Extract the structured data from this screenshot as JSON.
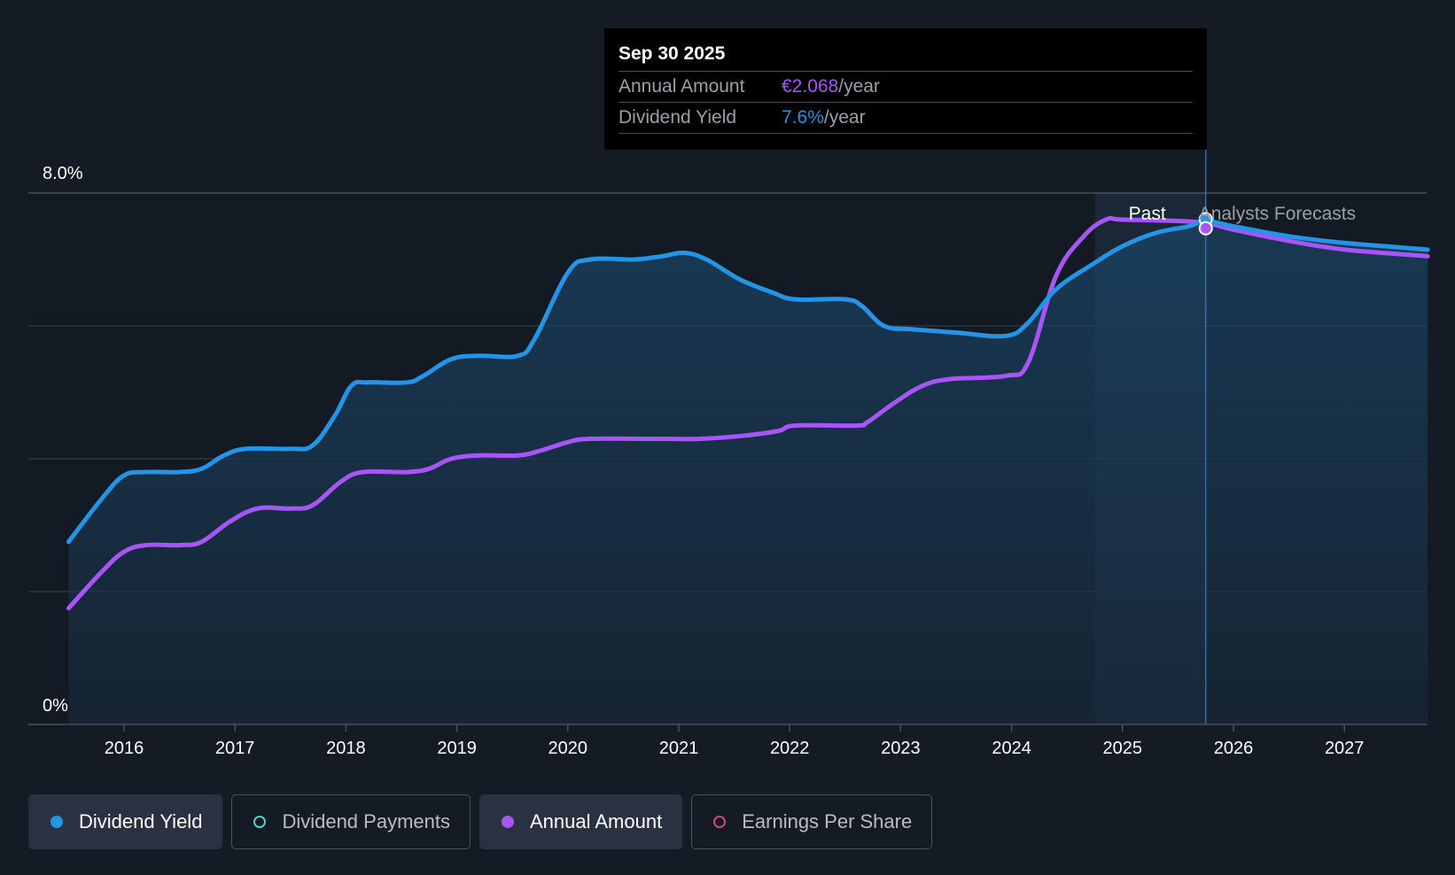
{
  "tooltip": {
    "date": "Sep 30 2025",
    "annual_label": "Annual Amount",
    "annual_value": "€2.068",
    "annual_unit": "/year",
    "yield_label": "Dividend Yield",
    "yield_value": "7.6%",
    "yield_unit": "/year"
  },
  "zones": {
    "past": "Past",
    "forecast": "Analysts Forecasts"
  },
  "legend": [
    {
      "label": "Dividend Yield",
      "color": "#2394e6",
      "active": true,
      "filled": true
    },
    {
      "label": "Dividend Payments",
      "color": "#4fd1c5",
      "active": false,
      "filled": false
    },
    {
      "label": "Annual Amount",
      "color": "#a855f7",
      "active": true,
      "filled": true
    },
    {
      "label": "Earnings Per Share",
      "color": "#d6457a",
      "active": false,
      "filled": false
    }
  ],
  "chart_data": {
    "type": "line",
    "y_tick_labels": [
      "0%",
      "8.0%"
    ],
    "ylim": [
      0,
      8
    ],
    "xlim": [
      2015.35,
      2027.75
    ],
    "x_ticks": [
      "2016",
      "2017",
      "2018",
      "2019",
      "2020",
      "2021",
      "2022",
      "2023",
      "2024",
      "2025",
      "2026",
      "2027"
    ],
    "grid": true,
    "past_shade_range": [
      2024.75,
      2025.75
    ],
    "cursor_x": 2025.75,
    "series": [
      {
        "name": "Dividend Yield",
        "color": "#2394e6",
        "points": [
          [
            2015.5,
            2.75
          ],
          [
            2015.8,
            3.4
          ],
          [
            2016.0,
            3.75
          ],
          [
            2016.2,
            3.8
          ],
          [
            2016.5,
            3.8
          ],
          [
            2016.7,
            3.85
          ],
          [
            2016.9,
            4.05
          ],
          [
            2017.1,
            4.15
          ],
          [
            2017.5,
            4.15
          ],
          [
            2017.7,
            4.2
          ],
          [
            2017.9,
            4.65
          ],
          [
            2018.05,
            5.1
          ],
          [
            2018.2,
            5.15
          ],
          [
            2018.55,
            5.15
          ],
          [
            2018.7,
            5.25
          ],
          [
            2018.95,
            5.5
          ],
          [
            2019.2,
            5.55
          ],
          [
            2019.55,
            5.55
          ],
          [
            2019.7,
            5.8
          ],
          [
            2020.0,
            6.8
          ],
          [
            2020.2,
            7.0
          ],
          [
            2020.6,
            7.0
          ],
          [
            2020.85,
            7.05
          ],
          [
            2021.05,
            7.1
          ],
          [
            2021.25,
            7.0
          ],
          [
            2021.55,
            6.7
          ],
          [
            2021.85,
            6.5
          ],
          [
            2022.05,
            6.4
          ],
          [
            2022.5,
            6.4
          ],
          [
            2022.65,
            6.3
          ],
          [
            2022.85,
            6.0
          ],
          [
            2023.1,
            5.95
          ],
          [
            2023.5,
            5.9
          ],
          [
            2023.95,
            5.85
          ],
          [
            2024.15,
            6.05
          ],
          [
            2024.4,
            6.55
          ],
          [
            2024.75,
            6.95
          ],
          [
            2025.0,
            7.2
          ],
          [
            2025.3,
            7.4
          ],
          [
            2025.6,
            7.5
          ],
          [
            2025.75,
            7.58
          ],
          [
            2026.0,
            7.5
          ],
          [
            2026.5,
            7.35
          ],
          [
            2027.0,
            7.25
          ],
          [
            2027.75,
            7.15
          ]
        ]
      },
      {
        "name": "Annual Amount",
        "color": "#a855f7",
        "points": [
          [
            2015.5,
            1.75
          ],
          [
            2015.8,
            2.3
          ],
          [
            2016.0,
            2.6
          ],
          [
            2016.2,
            2.7
          ],
          [
            2016.5,
            2.7
          ],
          [
            2016.7,
            2.75
          ],
          [
            2016.95,
            3.05
          ],
          [
            2017.2,
            3.25
          ],
          [
            2017.5,
            3.25
          ],
          [
            2017.7,
            3.3
          ],
          [
            2017.95,
            3.65
          ],
          [
            2018.15,
            3.8
          ],
          [
            2018.55,
            3.8
          ],
          [
            2018.75,
            3.85
          ],
          [
            2018.95,
            4.0
          ],
          [
            2019.2,
            4.05
          ],
          [
            2019.55,
            4.05
          ],
          [
            2019.75,
            4.12
          ],
          [
            2020.0,
            4.25
          ],
          [
            2020.2,
            4.3
          ],
          [
            2020.8,
            4.3
          ],
          [
            2021.2,
            4.3
          ],
          [
            2021.6,
            4.35
          ],
          [
            2021.9,
            4.42
          ],
          [
            2022.05,
            4.5
          ],
          [
            2022.6,
            4.5
          ],
          [
            2022.7,
            4.55
          ],
          [
            2022.95,
            4.85
          ],
          [
            2023.2,
            5.1
          ],
          [
            2023.45,
            5.2
          ],
          [
            2023.95,
            5.25
          ],
          [
            2024.15,
            5.45
          ],
          [
            2024.4,
            6.75
          ],
          [
            2024.65,
            7.35
          ],
          [
            2024.85,
            7.6
          ],
          [
            2025.0,
            7.6
          ],
          [
            2025.5,
            7.58
          ],
          [
            2025.75,
            7.55
          ],
          [
            2026.0,
            7.45
          ],
          [
            2026.5,
            7.28
          ],
          [
            2027.0,
            7.15
          ],
          [
            2027.75,
            7.05
          ]
        ]
      }
    ]
  }
}
